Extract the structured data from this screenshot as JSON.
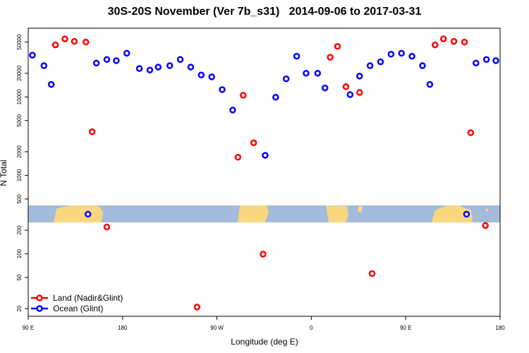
{
  "chart_data": {
    "type": "scatter",
    "title": "30S-20S November (Ver 7b_s31)   2014-09-06 to 2017-03-31",
    "x_label": "Longitude (deg E)",
    "y_label": "N Total",
    "yscale": "log",
    "xlim": [
      90,
      540
    ],
    "ylim": [
      16,
      75000
    ],
    "xticks": [
      {
        "value": 90,
        "label": "90 E"
      },
      180,
      {
        "value": 270,
        "label": "90 W"
      },
      {
        "value": 360,
        "label": "0"
      },
      {
        "value": 450,
        "label": "90 E"
      },
      {
        "value": 540,
        "label": "180"
      }
    ],
    "yticks": [
      20,
      50,
      100,
      200,
      500,
      1000,
      2000,
      5000,
      10000,
      20000,
      50000
    ],
    "legend": "bottom-left",
    "series": [
      {
        "name": "Land (Nadir&Glint)",
        "color": "#ff0000",
        "x": [
          116,
          125,
          134,
          145,
          151,
          165,
          251,
          290,
          295,
          305,
          314,
          378,
          385,
          393,
          406,
          418,
          478,
          486,
          496,
          506,
          512,
          526
        ],
        "values": [
          46000,
          55000,
          51000,
          50000,
          3600,
          220,
          21,
          1700,
          10500,
          2600,
          99,
          32000,
          44000,
          13500,
          11400,
          56,
          46000,
          55000,
          51000,
          50000,
          3500,
          230
        ]
      },
      {
        "name": "Ocean (Glint)",
        "color": "#0000ff",
        "x": [
          94,
          105,
          112,
          147,
          155,
          165,
          174,
          184,
          196,
          206,
          214,
          225,
          235,
          245,
          255,
          265,
          275,
          285,
          316,
          326,
          336,
          346,
          355,
          366,
          373,
          397,
          406,
          416,
          426,
          436,
          446,
          456,
          466,
          473,
          508,
          517,
          527,
          536
        ],
        "values": [
          34000,
          25000,
          14400,
          320,
          27000,
          30000,
          29000,
          36000,
          23000,
          22000,
          24000,
          25000,
          30000,
          24000,
          19000,
          18000,
          12400,
          6800,
          1800,
          9900,
          17000,
          33000,
          20000,
          20000,
          13000,
          10700,
          18400,
          25000,
          28000,
          35000,
          36000,
          33000,
          25000,
          14400,
          320,
          27000,
          30000,
          29000
        ]
      }
    ]
  }
}
